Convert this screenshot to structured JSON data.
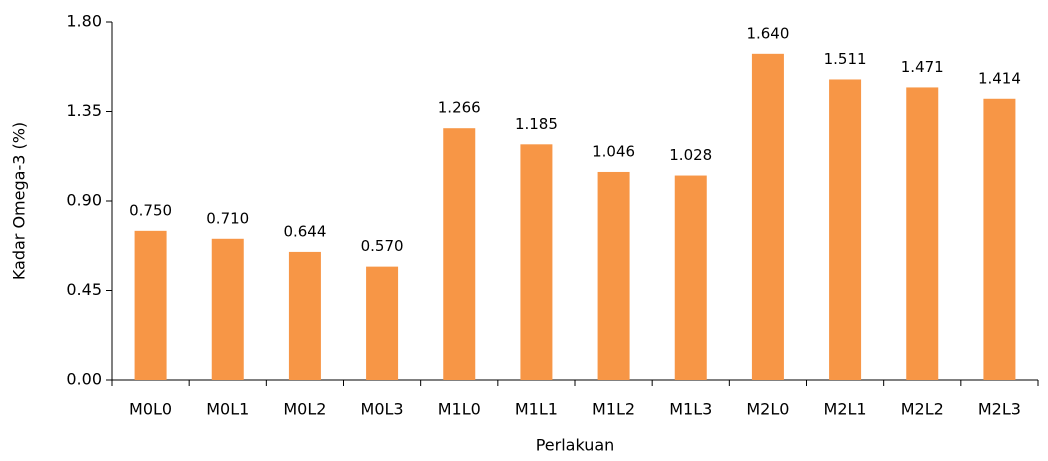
{
  "chart_data": {
    "type": "bar",
    "x_label": "Perlakuan",
    "y_label": "Kadar Omega-3 (%)",
    "categories": [
      "M0L0",
      "M0L1",
      "M0L2",
      "M0L3",
      "M1L0",
      "M1L1",
      "M1L2",
      "M1L3",
      "M2L0",
      "M2L1",
      "M2L2",
      "M2L3"
    ],
    "values": [
      0.75,
      0.71,
      0.644,
      0.57,
      1.266,
      1.185,
      1.046,
      1.028,
      1.64,
      1.511,
      1.471,
      1.414
    ],
    "value_labels": [
      "0.750",
      "0.710",
      "0.644",
      "0.570",
      "1.266",
      "1.185",
      "1.046",
      "1.028",
      "1.640",
      "1.511",
      "1.471",
      "1.414"
    ],
    "color": "#f79646",
    "ylim": [
      0,
      1.8
    ],
    "yticks": [
      {
        "value": 0,
        "label": "0.00"
      },
      0.45,
      {
        "value": 0.9,
        "label": "0.90"
      },
      1.35,
      {
        "value": 1.8,
        "label": "1.80"
      }
    ],
    "grid": false
  }
}
